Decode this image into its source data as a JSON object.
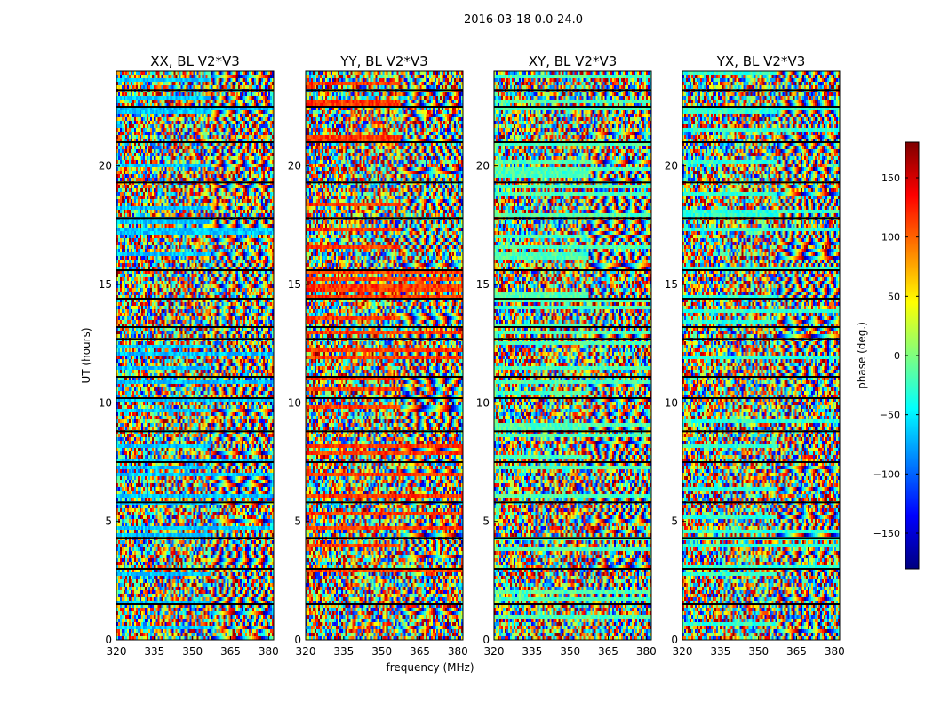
{
  "figure": {
    "suptitle": "2016-03-18 0.0-24.0",
    "xlabel": "frequency (MHz)",
    "ylabel": "UT (hours)"
  },
  "colorbar": {
    "label": "phase (deg.)",
    "ticks": [
      150,
      100,
      50,
      0,
      -50,
      -100,
      -150
    ],
    "tick_labels": [
      "150",
      "100",
      "50",
      "0",
      "−50",
      "−100",
      "−150"
    ],
    "range": [
      -180,
      180
    ],
    "colormap": "jet",
    "colors": [
      "#00007f",
      "#0000ff",
      "#007fff",
      "#00ffff",
      "#7fff7f",
      "#ffff00",
      "#ff7f00",
      "#ff0000",
      "#7f0000"
    ]
  },
  "chart_data": {
    "type": "heatmap",
    "xlim": [
      320,
      382
    ],
    "ylim": [
      0,
      24
    ],
    "x_ticks": [
      320,
      335,
      350,
      365,
      380
    ],
    "x_tick_labels": [
      "320",
      "335",
      "350",
      "365",
      "380"
    ],
    "y_ticks": [
      0,
      5,
      10,
      15,
      20
    ],
    "y_tick_labels": [
      "0",
      "5",
      "10",
      "15",
      "20"
    ],
    "z_label": "phase (deg.)",
    "z_range": [
      -180,
      180
    ],
    "panels": [
      {
        "title": "XX, BL V2*V3"
      },
      {
        "title": "YY, BL V2*V3"
      },
      {
        "title": "XY, BL V2*V3"
      },
      {
        "title": "YX, BL V2*V3"
      }
    ],
    "scan_gaps_hours": [
      1.5,
      3.0,
      4.3,
      5.8,
      7.5,
      8.8,
      10.2,
      11.1,
      12.7,
      13.2,
      14.4,
      15.6,
      17.8,
      19.3,
      21.0,
      22.5,
      23.2
    ]
  }
}
